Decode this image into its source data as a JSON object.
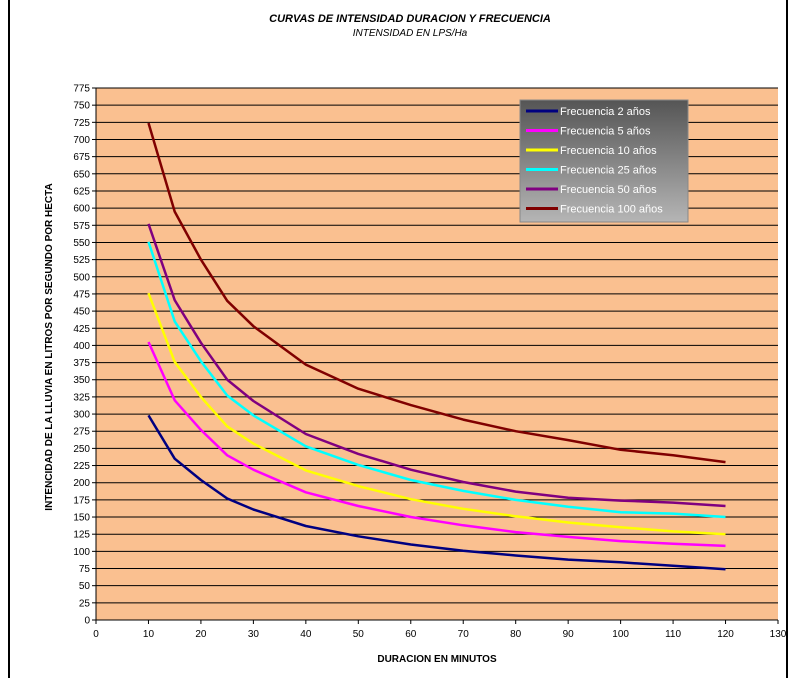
{
  "chart_data": {
    "type": "line",
    "title": "CURVAS DE  INTENSIDAD DURACION Y FRECUENCIA",
    "subtitle": "INTENSIDAD EN LPS/Ha",
    "xlabel": "DURACION EN MINUTOS",
    "ylabel": "INTENCIDAD DE LA LLUVIA EN LITROS POR SEGUNDO POR HECTA",
    "xlim": [
      0,
      130
    ],
    "ylim": [
      0,
      775
    ],
    "x_ticks": [
      0,
      10,
      20,
      30,
      40,
      50,
      60,
      70,
      80,
      90,
      100,
      110,
      120,
      130
    ],
    "y_ticks": [
      0,
      25,
      50,
      75,
      100,
      125,
      150,
      175,
      200,
      225,
      250,
      275,
      300,
      325,
      350,
      375,
      400,
      425,
      450,
      475,
      500,
      525,
      550,
      575,
      600,
      625,
      650,
      675,
      700,
      725,
      750,
      775
    ],
    "grid": "horizontal",
    "plot_background": "#fac090",
    "legend_position": "top-right",
    "x": [
      10,
      15,
      20,
      25,
      30,
      40,
      50,
      60,
      70,
      80,
      90,
      100,
      110,
      120
    ],
    "series": [
      {
        "name": "Frecuencia 2 años",
        "color": "#000080",
        "values": [
          298,
          235,
          204,
          177,
          161,
          137,
          122,
          110,
          101,
          94,
          88,
          84,
          79,
          74
        ]
      },
      {
        "name": "Frecuencia 5 años",
        "color": "#ff00ff",
        "values": [
          405,
          320,
          277,
          240,
          219,
          186,
          166,
          150,
          138,
          128,
          121,
          115,
          111,
          108
        ]
      },
      {
        "name": "Frecuencia 10 años",
        "color": "#ffff00",
        "values": [
          476,
          376,
          325,
          282,
          257,
          218,
          195,
          176,
          162,
          151,
          142,
          135,
          129,
          125
        ]
      },
      {
        "name": "Frecuencia 25 años",
        "color": "#00ffff",
        "values": [
          551,
          435,
          377,
          327,
          298,
          253,
          226,
          204,
          188,
          175,
          165,
          157,
          155,
          150
        ]
      },
      {
        "name": "Frecuencia 50 años",
        "color": "#800080",
        "values": [
          577,
          466,
          404,
          350,
          319,
          271,
          242,
          219,
          201,
          187,
          178,
          174,
          171,
          166
        ]
      },
      {
        "name": "Frecuencia 100 años",
        "color": "#800000",
        "values": [
          724,
          595,
          525,
          465,
          428,
          372,
          337,
          313,
          292,
          275,
          262,
          248,
          240,
          230
        ]
      }
    ]
  }
}
